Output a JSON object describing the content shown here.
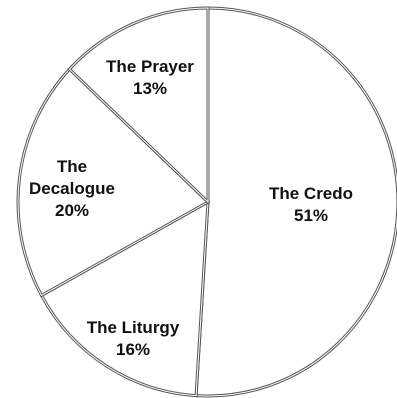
{
  "chart_data": {
    "type": "pie",
    "title": "",
    "slices": [
      {
        "label": "The Credo",
        "value": 51,
        "value_label": "51%"
      },
      {
        "label": "The Liturgy",
        "value": 16,
        "value_label": "16%"
      },
      {
        "label": "The Decalogue",
        "value": 20,
        "value_label": "20%"
      },
      {
        "label": "The Prayer",
        "value": 13,
        "value_label": "13%"
      }
    ],
    "start_angle_deg": 0,
    "direction": "clockwise",
    "slice_fill": "#ffffff",
    "edge_color": "#555555",
    "legend": "none"
  }
}
